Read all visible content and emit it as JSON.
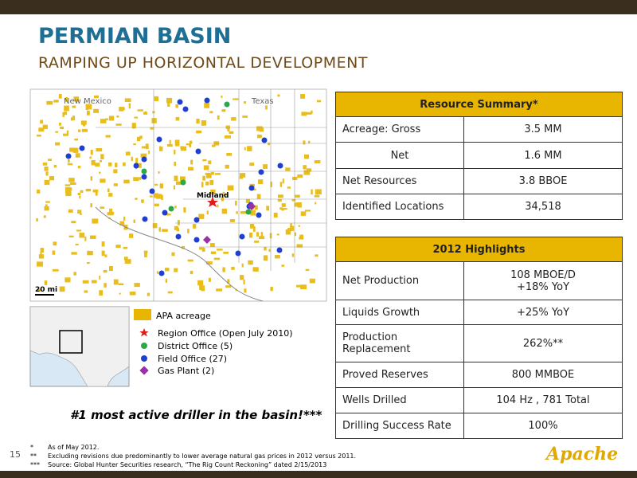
{
  "header": {
    "title": "PERMIAN BASIN",
    "subtitle": "RAMPING UP HORIZONTAL DEVELOPMENT"
  },
  "map": {
    "labels": {
      "new_mexico": "New Mexico",
      "texas": "Texas",
      "midland": "Midland",
      "scale": "20 mi"
    },
    "legend": [
      "APA acreage",
      "Region Office (Open July 2010)",
      "District Office (5)",
      "Field Office (27)",
      "Gas Plant (2)"
    ]
  },
  "tagline": "#1 most active driller in the basin!***",
  "resource_summary": {
    "title": "Resource Summary*",
    "rows": [
      [
        "Acreage: Gross",
        "3.5 MM"
      ],
      [
        "Net",
        "1.6 MM"
      ],
      [
        "Net Resources",
        "3.8 BBOE"
      ],
      [
        "Identified Locations",
        "34,518"
      ]
    ]
  },
  "highlights": {
    "title": "2012 Highlights",
    "rows": [
      [
        "Net Production",
        [
          "108 MBOE/D",
          "+18%  YoY"
        ]
      ],
      [
        "Liquids Growth",
        "+25% YoY"
      ],
      [
        "Production Replacement",
        "262%**"
      ],
      [
        "Proved Reserves",
        "800 MMBOE"
      ],
      [
        "Wells Drilled",
        "104 Hz , 781 Total"
      ],
      [
        "Drilling Success Rate",
        "100%"
      ]
    ]
  },
  "footnotes": [
    [
      "*",
      "As of May 2012."
    ],
    [
      "**",
      "Excluding revisions due predominantly to lower average natural gas prices in 2012 versus 2011."
    ],
    [
      "***",
      "Source: Global Hunter Securities research, “The Rig Count Reckoning” dated 2/15/2013"
    ]
  ],
  "page_number": "15",
  "logo": "Apache"
}
